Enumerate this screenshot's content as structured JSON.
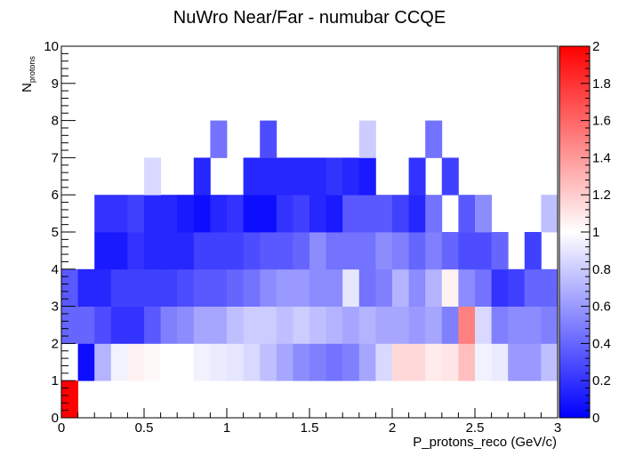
{
  "chart_data": {
    "type": "heatmap",
    "title": "NuWro Near/Far - numubar CCQE",
    "xlabel": "P_protons_reco (GeV/c)",
    "ylabel": "N",
    "ylabel_subscript": "protons",
    "xlim": [
      0,
      3
    ],
    "ylim": [
      0,
      10
    ],
    "x_bin_width": 0.1,
    "y_bin_width": 1,
    "x_ticks": [
      "0",
      "0.5",
      "1",
      "1.5",
      "2",
      "2.5",
      "3"
    ],
    "y_ticks": [
      "0",
      "1",
      "2",
      "3",
      "4",
      "5",
      "6",
      "7",
      "8",
      "9",
      "10"
    ],
    "z_range": [
      0,
      2
    ],
    "colorbar_ticks": [
      "0",
      "0.2",
      "0.4",
      "0.6",
      "0.8",
      "1",
      "1.2",
      "1.4",
      "1.6",
      "1.8",
      "2"
    ],
    "colorscale": {
      "low": "#0000ff",
      "mid": "#ffffff",
      "high": "#ff0000"
    },
    "rows": [
      {
        "y_range": [
          0,
          1
        ],
        "values": [
          2.0
        ]
      },
      {
        "y_range": [
          1,
          2
        ],
        "values": [
          null,
          0.05,
          0.7,
          0.95,
          1.05,
          1.02,
          1.0,
          1.0,
          0.95,
          0.92,
          0.9,
          0.85,
          0.75,
          0.65,
          0.55,
          0.5,
          0.45,
          0.5,
          0.65,
          0.85,
          1.15,
          1.15,
          1.08,
          1.1,
          1.25,
          0.95,
          0.92,
          0.6,
          0.6,
          0.75
        ]
      },
      {
        "y_range": [
          2,
          3
        ],
        "values": [
          0.4,
          0.4,
          0.3,
          0.2,
          0.2,
          0.35,
          0.5,
          0.55,
          0.65,
          0.65,
          0.75,
          0.8,
          0.8,
          0.75,
          0.8,
          0.75,
          0.7,
          0.65,
          0.7,
          0.65,
          0.65,
          0.6,
          0.65,
          0.5,
          1.5,
          0.85,
          0.5,
          0.55,
          0.55,
          0.5
        ]
      },
      {
        "y_range": [
          3,
          4
        ],
        "values": [
          0.35,
          0.15,
          0.15,
          0.25,
          0.25,
          0.25,
          0.25,
          0.3,
          0.35,
          0.35,
          0.4,
          0.45,
          0.55,
          0.6,
          0.6,
          0.55,
          0.55,
          0.9,
          0.45,
          0.5,
          0.7,
          0.55,
          0.7,
          1.05,
          0.55,
          0.45,
          0.2,
          0.25,
          0.4,
          0.4
        ]
      },
      {
        "y_range": [
          4,
          5
        ],
        "values": [
          null,
          null,
          0.1,
          0.1,
          0.2,
          0.15,
          0.15,
          0.15,
          0.25,
          0.25,
          0.25,
          0.3,
          0.35,
          0.35,
          0.4,
          0.55,
          0.45,
          0.45,
          0.45,
          0.55,
          0.5,
          0.4,
          0.5,
          0.4,
          0.3,
          0.3,
          0.4,
          null,
          0.25,
          null
        ]
      },
      {
        "y_range": [
          5,
          6
        ],
        "values": [
          null,
          null,
          0.2,
          0.2,
          0.25,
          0.15,
          0.15,
          0.1,
          0.05,
          0.15,
          0.2,
          0.05,
          0.05,
          0.2,
          0.25,
          0.15,
          0.1,
          0.35,
          0.35,
          0.35,
          0.25,
          0.15,
          0.45,
          null,
          0.35,
          0.55,
          null,
          null,
          null,
          0.75
        ]
      },
      {
        "y_range": [
          6,
          7
        ],
        "values": [
          null,
          null,
          null,
          null,
          null,
          0.85,
          null,
          null,
          0.15,
          null,
          null,
          0.15,
          0.15,
          0.15,
          0.15,
          0.15,
          0.2,
          0.15,
          0.1,
          null,
          null,
          0.2,
          null,
          0.25,
          null,
          null,
          null,
          null,
          null,
          null
        ]
      },
      {
        "y_range": [
          7,
          8
        ],
        "values": [
          null,
          null,
          null,
          null,
          null,
          null,
          null,
          null,
          null,
          0.45,
          null,
          null,
          0.3,
          null,
          null,
          null,
          null,
          null,
          0.8,
          null,
          null,
          null,
          0.45,
          null,
          null,
          null,
          null,
          null,
          null,
          null
        ]
      }
    ]
  }
}
